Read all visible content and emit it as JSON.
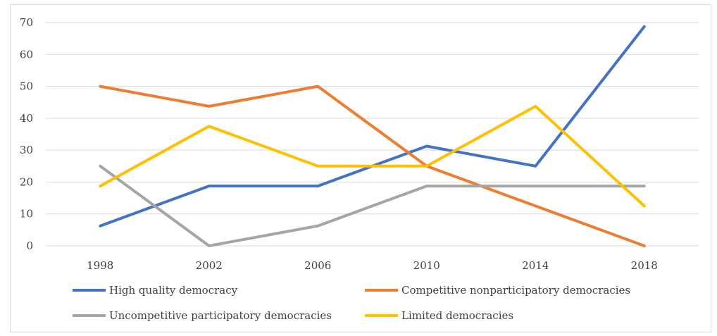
{
  "chart_data": {
    "type": "line",
    "title": "",
    "xlabel": "",
    "ylabel": "",
    "x": [
      "1998",
      "2002",
      "2006",
      "2010",
      "2014",
      "2018"
    ],
    "ylim": [
      0,
      70
    ],
    "yticks": [
      0,
      10,
      20,
      30,
      40,
      50,
      60,
      70
    ],
    "grid": true,
    "legend_position": "bottom",
    "series": [
      {
        "name": "High quality democracy",
        "color": "#4472c4",
        "values": [
          6.25,
          18.75,
          18.75,
          31.25,
          25,
          68.75
        ]
      },
      {
        "name": "Competitive nonparticipatory democracies",
        "color": "#ed7d31",
        "values": [
          50,
          43.75,
          50,
          25,
          12.5,
          0
        ]
      },
      {
        "name": "Uncompetitive participatory democracies",
        "color": "#a5a5a5",
        "values": [
          25,
          0,
          6.25,
          18.75,
          18.75,
          18.75
        ]
      },
      {
        "name": "Limited democracies",
        "color": "#ffc000",
        "values": [
          18.75,
          37.5,
          25,
          25,
          43.75,
          12.5
        ]
      }
    ]
  }
}
